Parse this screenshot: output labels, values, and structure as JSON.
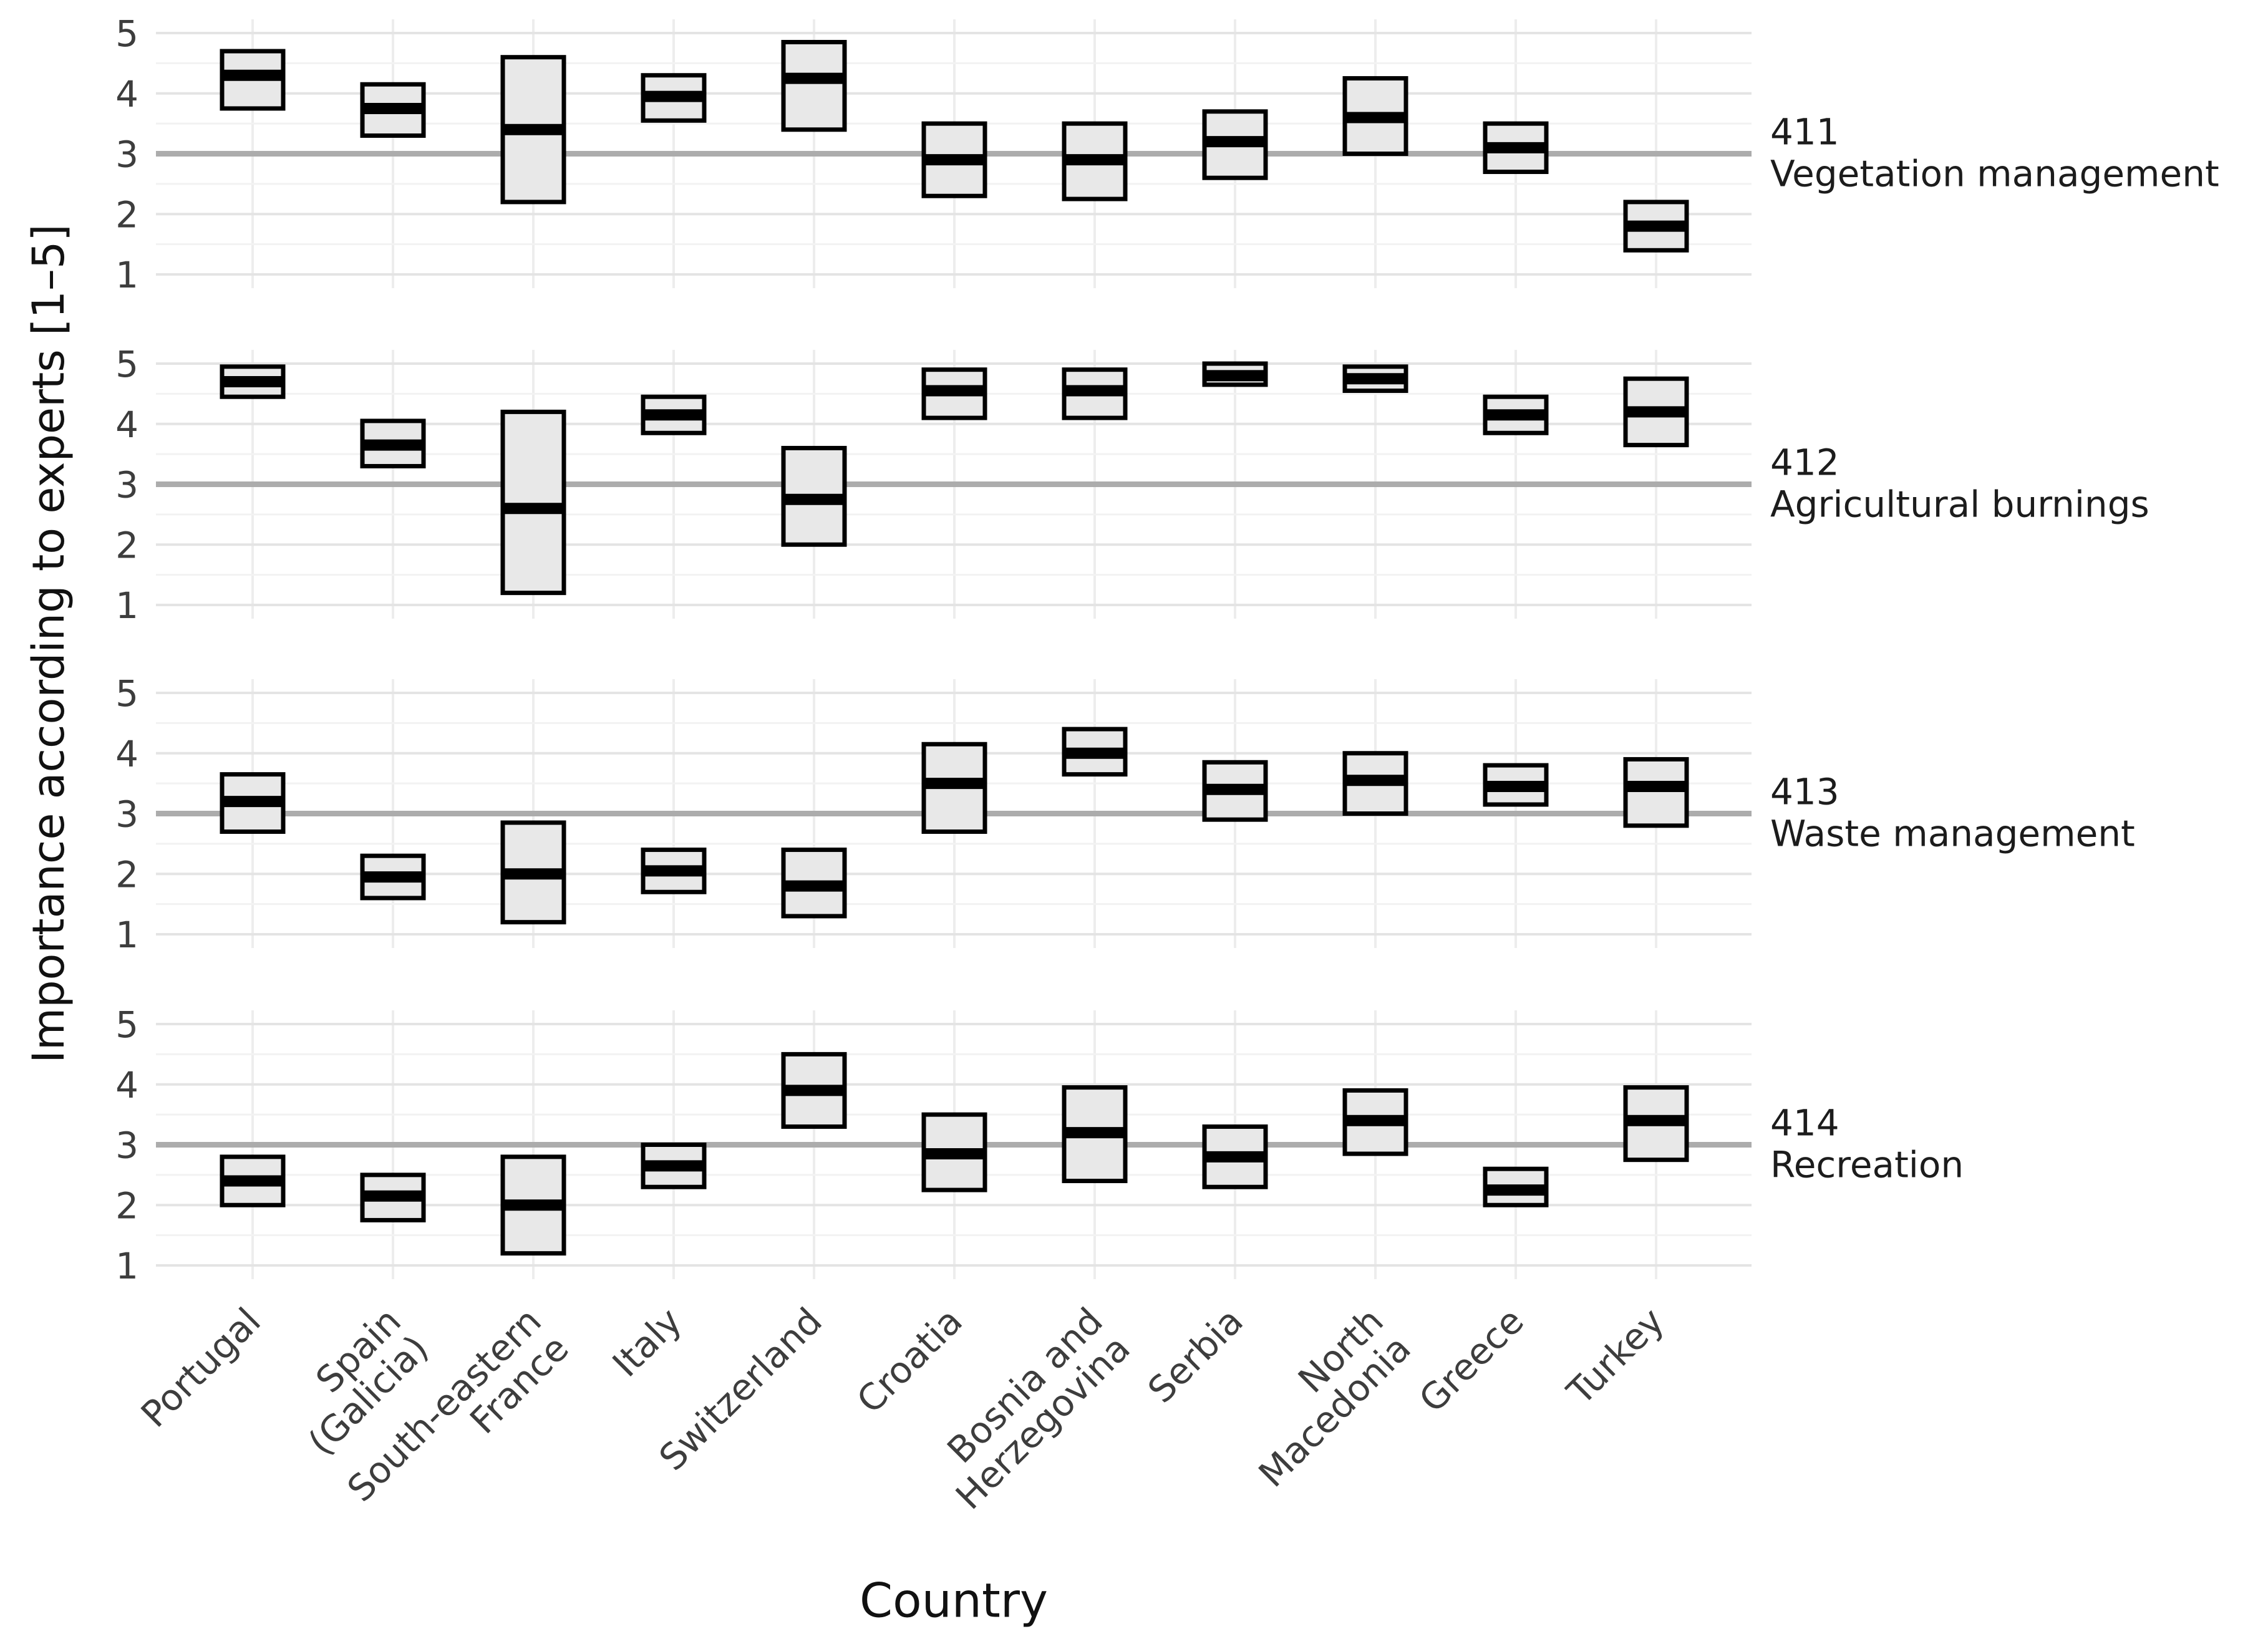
{
  "chart_data": {
    "type": "bar",
    "subtype": "faceted-crossbar-boxplot",
    "title": "",
    "xlabel": "Country",
    "ylabel": "Importance according to experts [1–5]",
    "ylim": [
      1,
      5
    ],
    "yticks": [
      1,
      2,
      3,
      4,
      5
    ],
    "reference_line_y": 3,
    "grid": "horizontal major at integers, minor at halves, vertical at each category",
    "legend": "none",
    "categories": [
      {
        "label": "Portugal",
        "label_lines": [
          "Portugal"
        ]
      },
      {
        "label": "Spain (Galicia)",
        "label_lines": [
          "Spain",
          "(Galicia)"
        ]
      },
      {
        "label": "South-eastern France",
        "label_lines": [
          "South-eastern",
          "France"
        ]
      },
      {
        "label": "Italy",
        "label_lines": [
          "Italy"
        ]
      },
      {
        "label": "Switzerland",
        "label_lines": [
          "Switzerland"
        ]
      },
      {
        "label": "Croatia",
        "label_lines": [
          "Croatia"
        ]
      },
      {
        "label": "Bosnia and Herzegovina",
        "label_lines": [
          "Bosnia and",
          "Herzegovina"
        ]
      },
      {
        "label": "Serbia",
        "label_lines": [
          "Serbia"
        ]
      },
      {
        "label": "North Macedonia",
        "label_lines": [
          "North",
          "Macedonia"
        ]
      },
      {
        "label": "Greece",
        "label_lines": [
          "Greece"
        ]
      },
      {
        "label": "Turkey",
        "label_lines": [
          "Turkey"
        ]
      }
    ],
    "value_format": "boxes are [lower, median, upper] importance scores per country",
    "panels": [
      {
        "code": "411",
        "name": "Vegetation management",
        "boxes": [
          [
            3.75,
            4.3,
            4.7
          ],
          [
            3.3,
            3.75,
            4.15
          ],
          [
            2.2,
            3.4,
            4.6
          ],
          [
            3.55,
            3.95,
            4.3
          ],
          [
            3.4,
            4.25,
            4.85
          ],
          [
            2.3,
            2.9,
            3.5
          ],
          [
            2.25,
            2.9,
            3.5
          ],
          [
            2.6,
            3.2,
            3.7
          ],
          [
            3.0,
            3.6,
            4.25
          ],
          [
            2.7,
            3.1,
            3.5
          ],
          [
            1.4,
            1.8,
            2.2
          ]
        ]
      },
      {
        "code": "412",
        "name": "Agricultural burnings",
        "boxes": [
          [
            4.45,
            4.7,
            4.95
          ],
          [
            3.3,
            3.65,
            4.05
          ],
          [
            1.2,
            2.6,
            4.2
          ],
          [
            3.85,
            4.15,
            4.45
          ],
          [
            2.0,
            2.75,
            3.6
          ],
          [
            4.1,
            4.55,
            4.9
          ],
          [
            4.1,
            4.55,
            4.9
          ],
          [
            4.65,
            4.8,
            5.0
          ],
          [
            4.55,
            4.75,
            4.95
          ],
          [
            3.85,
            4.15,
            4.45
          ],
          [
            3.65,
            4.2,
            4.75
          ]
        ]
      },
      {
        "code": "413",
        "name": "Waste management",
        "boxes": [
          [
            2.7,
            3.2,
            3.65
          ],
          [
            1.6,
            1.95,
            2.3
          ],
          [
            1.2,
            2.0,
            2.85
          ],
          [
            1.7,
            2.05,
            2.4
          ],
          [
            1.3,
            1.8,
            2.4
          ],
          [
            2.7,
            3.5,
            4.15
          ],
          [
            3.65,
            4.0,
            4.4
          ],
          [
            2.9,
            3.4,
            3.85
          ],
          [
            3.0,
            3.55,
            4.0
          ],
          [
            3.15,
            3.45,
            3.8
          ],
          [
            2.8,
            3.45,
            3.9
          ]
        ]
      },
      {
        "code": "414",
        "name": "Recreation",
        "boxes": [
          [
            2.0,
            2.4,
            2.8
          ],
          [
            1.75,
            2.15,
            2.5
          ],
          [
            1.2,
            2.0,
            2.8
          ],
          [
            2.3,
            2.65,
            3.0
          ],
          [
            3.3,
            3.9,
            4.5
          ],
          [
            2.25,
            2.85,
            3.5
          ],
          [
            2.4,
            3.2,
            3.95
          ],
          [
            2.3,
            2.8,
            3.3
          ],
          [
            2.85,
            3.4,
            3.9
          ],
          [
            2.0,
            2.25,
            2.6
          ],
          [
            2.75,
            3.4,
            3.95
          ]
        ]
      }
    ],
    "colors": {
      "background": "#ffffff",
      "box_fill": "#e8e8e8",
      "box_stroke": "#000000",
      "median_line": "#000000",
      "reference_line": "#acacac",
      "grid_major": "#e4e4e4",
      "grid_minor": "#f2f2f2",
      "grid_vertical": "#ededed",
      "axis_text": "#3d3d3d",
      "strip_text": "#1c1c1c"
    }
  }
}
